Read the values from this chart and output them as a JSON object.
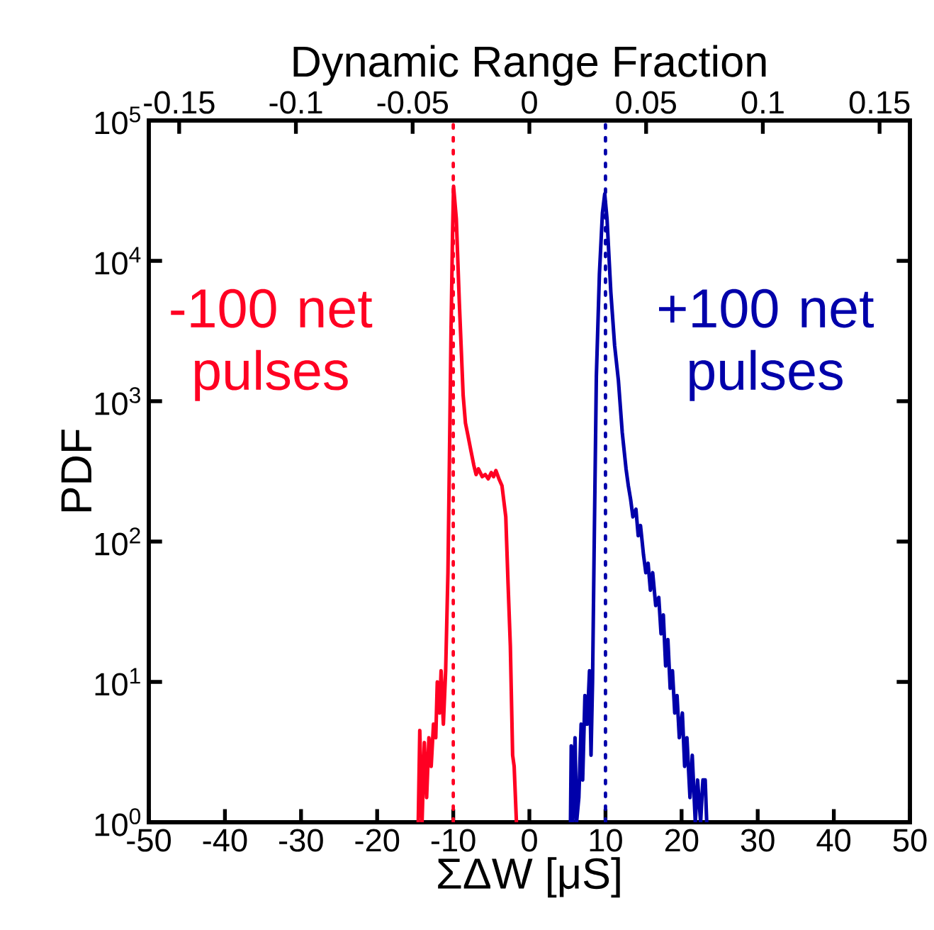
{
  "chart_data": {
    "type": "line",
    "xlabel": "ΣΔW [μS]",
    "ylabel": "PDF",
    "x2label": "Dynamic Range Fraction",
    "xlim": [
      -50,
      50
    ],
    "xticks": [
      -50,
      -40,
      -30,
      -20,
      -10,
      0,
      10,
      20,
      30,
      40,
      50
    ],
    "x2lim": [
      -0.163,
      0.163
    ],
    "x2ticks": [
      -0.15,
      -0.1,
      -0.05,
      0,
      0.05,
      0.1,
      0.15
    ],
    "ylim": [
      1,
      100000
    ],
    "log": "y",
    "yticks": [
      {
        "value": 1,
        "label": "10$^{0}$"
      },
      {
        "value": 10,
        "label": "10$^{1}$"
      },
      {
        "value": 100,
        "label": "10$^{2}$"
      },
      {
        "value": 1000,
        "label": "10$^{3}$"
      },
      {
        "value": 10000,
        "label": "10$^{4}$"
      },
      {
        "value": 100000,
        "label": "10$^{5}$"
      }
    ],
    "grid": false,
    "legend": false,
    "marker": "none",
    "line_style": "solid",
    "series": [
      {
        "name": "-100 net pulses",
        "color": "#ff0022",
        "x": [
          -14.6,
          -14.4,
          -14.1,
          -13.8,
          -13.5,
          -13.2,
          -12.9,
          -12.6,
          -12.3,
          -12.1,
          -11.8,
          -11.6,
          -11.3,
          -11.0,
          -10.7,
          -10.5,
          -10.3,
          -10.1,
          -9.96,
          -9.6,
          -9.2,
          -8.7,
          -8.4,
          -8.1,
          -7.7,
          -7.3,
          -7.0,
          -6.7,
          -6.2,
          -5.8,
          -5.4,
          -5.0,
          -4.7,
          -4.4,
          -4.0,
          -3.6,
          -3.1,
          -2.8,
          -2.5,
          -2.2,
          -2.0,
          -1.7
        ],
        "values": [
          1,
          4.5,
          1,
          3.7,
          1.5,
          4,
          2.5,
          5,
          4,
          10,
          6,
          12,
          5,
          12,
          60,
          400,
          3000,
          15000,
          34000,
          20000,
          5000,
          1100,
          700,
          580,
          450,
          350,
          300,
          330,
          290,
          300,
          280,
          310,
          290,
          320,
          280,
          250,
          150,
          50,
          18,
          3,
          2.5,
          1
        ]
      },
      {
        "name": "+100 net pulses",
        "color": "#0000aa",
        "x": [
          5.4,
          5.5,
          5.7,
          6.0,
          6.2,
          6.5,
          6.8,
          7.0,
          7.3,
          7.6,
          7.9,
          8.1,
          8.3,
          8.5,
          8.8,
          9.2,
          9.6,
          9.9,
          10.2,
          10.7,
          11.2,
          11.7,
          12.2,
          12.7,
          13.0,
          13.3,
          13.6,
          14.0,
          14.3,
          14.6,
          15.0,
          15.3,
          15.6,
          15.9,
          16.2,
          16.6,
          17.0,
          17.3,
          17.6,
          17.9,
          18.2,
          18.5,
          18.8,
          19.1,
          19.4,
          19.7,
          20.1,
          20.4,
          20.7,
          21.1,
          21.4,
          21.8,
          22.1,
          22.5,
          22.8,
          23.1,
          23.3
        ],
        "values": [
          1,
          3.5,
          1,
          4,
          1,
          1.5,
          5,
          2,
          8,
          5,
          12,
          3,
          10,
          80,
          1500,
          8000,
          22000,
          30000,
          20000,
          6000,
          2500,
          1400,
          600,
          330,
          250,
          200,
          150,
          170,
          110,
          130,
          80,
          60,
          70,
          45,
          60,
          35,
          40,
          22,
          30,
          13,
          20,
          9,
          12,
          6,
          8,
          4,
          6,
          2.5,
          4,
          1.5,
          3,
          1,
          2,
          1,
          2,
          2,
          1
        ]
      }
    ],
    "ref_lines": [
      {
        "axis": "x",
        "value": -10,
        "color": "#ff0022",
        "line_style": "dotted"
      },
      {
        "axis": "x",
        "value": 10,
        "color": "#0000aa",
        "line_style": "dotted"
      }
    ]
  }
}
